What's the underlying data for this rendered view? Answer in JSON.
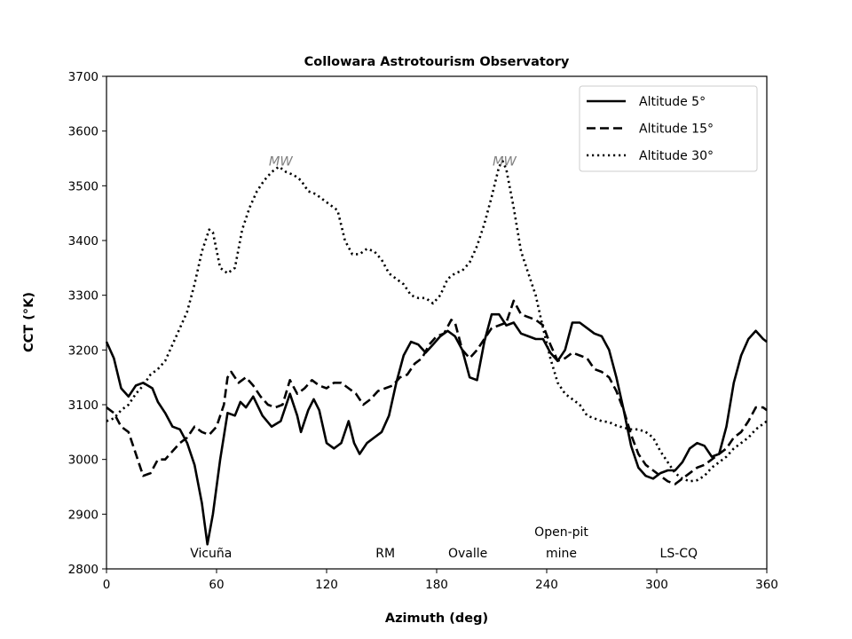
{
  "chart_data": {
    "type": "line",
    "title": "Collowara Astrotourism Observatory",
    "xlabel": "Azimuth (deg)",
    "ylabel": "CCT (°K)",
    "xlim": [
      0,
      360
    ],
    "ylim": [
      2800,
      3700
    ],
    "xticks": [
      0,
      60,
      120,
      180,
      240,
      300,
      360
    ],
    "yticks": [
      2800,
      2900,
      3000,
      3100,
      3200,
      3300,
      3400,
      3500,
      3600,
      3700
    ],
    "legend_position": "top-right",
    "colors": {
      "line": "#000000",
      "annotation_mw": "#808080"
    },
    "series": [
      {
        "name": "Altitude 5°",
        "style": "solid",
        "points": [
          [
            0,
            3215
          ],
          [
            4,
            3185
          ],
          [
            8,
            3130
          ],
          [
            12,
            3115
          ],
          [
            16,
            3135
          ],
          [
            20,
            3140
          ],
          [
            25,
            3130
          ],
          [
            28,
            3105
          ],
          [
            32,
            3085
          ],
          [
            36,
            3060
          ],
          [
            40,
            3055
          ],
          [
            44,
            3030
          ],
          [
            48,
            2990
          ],
          [
            52,
            2920
          ],
          [
            55,
            2845
          ],
          [
            58,
            2900
          ],
          [
            62,
            3000
          ],
          [
            66,
            3085
          ],
          [
            70,
            3080
          ],
          [
            73,
            3105
          ],
          [
            76,
            3095
          ],
          [
            80,
            3115
          ],
          [
            85,
            3080
          ],
          [
            90,
            3060
          ],
          [
            95,
            3070
          ],
          [
            100,
            3120
          ],
          [
            104,
            3080
          ],
          [
            106,
            3050
          ],
          [
            110,
            3090
          ],
          [
            113,
            3110
          ],
          [
            116,
            3090
          ],
          [
            120,
            3030
          ],
          [
            124,
            3020
          ],
          [
            128,
            3030
          ],
          [
            132,
            3070
          ],
          [
            135,
            3030
          ],
          [
            138,
            3010
          ],
          [
            142,
            3030
          ],
          [
            146,
            3040
          ],
          [
            150,
            3050
          ],
          [
            154,
            3080
          ],
          [
            158,
            3140
          ],
          [
            162,
            3190
          ],
          [
            166,
            3215
          ],
          [
            170,
            3210
          ],
          [
            174,
            3195
          ],
          [
            178,
            3210
          ],
          [
            182,
            3225
          ],
          [
            186,
            3235
          ],
          [
            190,
            3225
          ],
          [
            194,
            3200
          ],
          [
            198,
            3150
          ],
          [
            202,
            3145
          ],
          [
            206,
            3215
          ],
          [
            210,
            3265
          ],
          [
            214,
            3265
          ],
          [
            218,
            3245
          ],
          [
            222,
            3250
          ],
          [
            226,
            3230
          ],
          [
            230,
            3225
          ],
          [
            234,
            3220
          ],
          [
            238,
            3220
          ],
          [
            242,
            3195
          ],
          [
            246,
            3180
          ],
          [
            250,
            3200
          ],
          [
            254,
            3250
          ],
          [
            258,
            3250
          ],
          [
            262,
            3240
          ],
          [
            266,
            3230
          ],
          [
            270,
            3225
          ],
          [
            274,
            3200
          ],
          [
            278,
            3150
          ],
          [
            282,
            3090
          ],
          [
            286,
            3025
          ],
          [
            290,
            2985
          ],
          [
            294,
            2970
          ],
          [
            298,
            2965
          ],
          [
            302,
            2975
          ],
          [
            306,
            2980
          ],
          [
            310,
            2980
          ],
          [
            314,
            2995
          ],
          [
            318,
            3020
          ],
          [
            322,
            3030
          ],
          [
            326,
            3025
          ],
          [
            330,
            3005
          ],
          [
            334,
            3010
          ],
          [
            338,
            3060
          ],
          [
            342,
            3140
          ],
          [
            346,
            3190
          ],
          [
            350,
            3220
          ],
          [
            354,
            3235
          ],
          [
            358,
            3220
          ],
          [
            360,
            3215
          ]
        ]
      },
      {
        "name": "Altitude 15°",
        "style": "dashed",
        "points": [
          [
            0,
            3095
          ],
          [
            4,
            3085
          ],
          [
            8,
            3060
          ],
          [
            12,
            3050
          ],
          [
            16,
            3010
          ],
          [
            20,
            2970
          ],
          [
            24,
            2975
          ],
          [
            28,
            3000
          ],
          [
            32,
            3000
          ],
          [
            36,
            3015
          ],
          [
            40,
            3030
          ],
          [
            44,
            3040
          ],
          [
            48,
            3060
          ],
          [
            52,
            3050
          ],
          [
            56,
            3045
          ],
          [
            60,
            3060
          ],
          [
            64,
            3100
          ],
          [
            66,
            3150
          ],
          [
            68,
            3160
          ],
          [
            72,
            3140
          ],
          [
            76,
            3150
          ],
          [
            80,
            3135
          ],
          [
            84,
            3115
          ],
          [
            88,
            3100
          ],
          [
            92,
            3095
          ],
          [
            96,
            3100
          ],
          [
            100,
            3145
          ],
          [
            104,
            3120
          ],
          [
            108,
            3130
          ],
          [
            112,
            3145
          ],
          [
            116,
            3135
          ],
          [
            120,
            3130
          ],
          [
            124,
            3140
          ],
          [
            128,
            3140
          ],
          [
            132,
            3130
          ],
          [
            136,
            3120
          ],
          [
            140,
            3100
          ],
          [
            144,
            3110
          ],
          [
            148,
            3125
          ],
          [
            152,
            3130
          ],
          [
            156,
            3135
          ],
          [
            160,
            3150
          ],
          [
            164,
            3155
          ],
          [
            168,
            3175
          ],
          [
            172,
            3185
          ],
          [
            176,
            3210
          ],
          [
            180,
            3225
          ],
          [
            184,
            3230
          ],
          [
            188,
            3255
          ],
          [
            190,
            3250
          ],
          [
            194,
            3200
          ],
          [
            198,
            3185
          ],
          [
            202,
            3200
          ],
          [
            206,
            3220
          ],
          [
            210,
            3240
          ],
          [
            214,
            3245
          ],
          [
            218,
            3250
          ],
          [
            222,
            3290
          ],
          [
            226,
            3265
          ],
          [
            230,
            3260
          ],
          [
            234,
            3255
          ],
          [
            238,
            3245
          ],
          [
            242,
            3210
          ],
          [
            246,
            3180
          ],
          [
            250,
            3185
          ],
          [
            254,
            3195
          ],
          [
            258,
            3190
          ],
          [
            262,
            3185
          ],
          [
            266,
            3165
          ],
          [
            270,
            3160
          ],
          [
            274,
            3150
          ],
          [
            278,
            3125
          ],
          [
            282,
            3090
          ],
          [
            286,
            3045
          ],
          [
            290,
            3010
          ],
          [
            294,
            2990
          ],
          [
            298,
            2980
          ],
          [
            302,
            2970
          ],
          [
            306,
            2960
          ],
          [
            310,
            2955
          ],
          [
            314,
            2965
          ],
          [
            318,
            2975
          ],
          [
            322,
            2985
          ],
          [
            326,
            2990
          ],
          [
            330,
            3000
          ],
          [
            334,
            3010
          ],
          [
            338,
            3020
          ],
          [
            342,
            3040
          ],
          [
            346,
            3050
          ],
          [
            350,
            3070
          ],
          [
            354,
            3095
          ],
          [
            358,
            3095
          ],
          [
            360,
            3090
          ]
        ]
      },
      {
        "name": "Altitude 30°",
        "style": "dotted",
        "points": [
          [
            0,
            3070
          ],
          [
            4,
            3075
          ],
          [
            8,
            3090
          ],
          [
            12,
            3100
          ],
          [
            16,
            3120
          ],
          [
            20,
            3135
          ],
          [
            24,
            3155
          ],
          [
            28,
            3165
          ],
          [
            32,
            3180
          ],
          [
            36,
            3210
          ],
          [
            40,
            3240
          ],
          [
            44,
            3270
          ],
          [
            48,
            3320
          ],
          [
            52,
            3380
          ],
          [
            56,
            3420
          ],
          [
            58,
            3415
          ],
          [
            62,
            3350
          ],
          [
            66,
            3340
          ],
          [
            70,
            3350
          ],
          [
            74,
            3420
          ],
          [
            78,
            3460
          ],
          [
            82,
            3490
          ],
          [
            86,
            3510
          ],
          [
            90,
            3525
          ],
          [
            94,
            3535
          ],
          [
            98,
            3525
          ],
          [
            102,
            3520
          ],
          [
            106,
            3510
          ],
          [
            110,
            3490
          ],
          [
            114,
            3485
          ],
          [
            118,
            3475
          ],
          [
            122,
            3465
          ],
          [
            126,
            3455
          ],
          [
            130,
            3400
          ],
          [
            134,
            3375
          ],
          [
            138,
            3375
          ],
          [
            142,
            3385
          ],
          [
            146,
            3380
          ],
          [
            150,
            3365
          ],
          [
            154,
            3340
          ],
          [
            158,
            3330
          ],
          [
            162,
            3320
          ],
          [
            166,
            3300
          ],
          [
            170,
            3295
          ],
          [
            174,
            3295
          ],
          [
            178,
            3285
          ],
          [
            182,
            3300
          ],
          [
            186,
            3330
          ],
          [
            190,
            3340
          ],
          [
            194,
            3345
          ],
          [
            198,
            3360
          ],
          [
            202,
            3390
          ],
          [
            206,
            3430
          ],
          [
            210,
            3480
          ],
          [
            214,
            3535
          ],
          [
            216,
            3545
          ],
          [
            218,
            3530
          ],
          [
            222,
            3460
          ],
          [
            226,
            3380
          ],
          [
            230,
            3340
          ],
          [
            234,
            3300
          ],
          [
            238,
            3240
          ],
          [
            242,
            3185
          ],
          [
            246,
            3140
          ],
          [
            250,
            3120
          ],
          [
            254,
            3110
          ],
          [
            258,
            3100
          ],
          [
            262,
            3080
          ],
          [
            266,
            3075
          ],
          [
            270,
            3070
          ],
          [
            274,
            3068
          ],
          [
            278,
            3062
          ],
          [
            282,
            3058
          ],
          [
            286,
            3055
          ],
          [
            290,
            3055
          ],
          [
            294,
            3050
          ],
          [
            298,
            3040
          ],
          [
            302,
            3015
          ],
          [
            306,
            2995
          ],
          [
            310,
            2975
          ],
          [
            314,
            2965
          ],
          [
            318,
            2960
          ],
          [
            322,
            2962
          ],
          [
            326,
            2970
          ],
          [
            330,
            2985
          ],
          [
            334,
            2995
          ],
          [
            338,
            3005
          ],
          [
            342,
            3020
          ],
          [
            346,
            3030
          ],
          [
            350,
            3040
          ],
          [
            354,
            3055
          ],
          [
            358,
            3065
          ],
          [
            360,
            3070
          ]
        ]
      }
    ],
    "annotations": {
      "sites": [
        {
          "text": "Vicuña",
          "x": 57
        },
        {
          "text": "RM",
          "x": 152
        },
        {
          "text": "Ovalle",
          "x": 197
        },
        {
          "text": "Open-pit",
          "x": 248,
          "line": 1
        },
        {
          "text": "mine",
          "x": 248,
          "line": 2
        },
        {
          "text": "LS-CQ",
          "x": 312
        }
      ],
      "milky_way": [
        {
          "text": "MW",
          "x": 95,
          "y": 3550
        },
        {
          "text": "MW",
          "x": 217,
          "y": 3550
        }
      ]
    }
  }
}
